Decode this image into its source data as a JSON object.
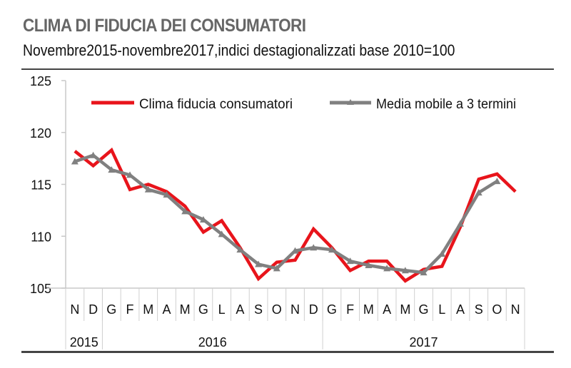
{
  "header": {
    "title": "CLIMA DI FIDUCIA DEI CONSUMATORI",
    "subtitle": "Novembre2015-novembre2017,indici destagionalizzati base 2010=100"
  },
  "chart_data": {
    "type": "line",
    "title": "CLIMA DI FIDUCIA DEI CONSUMATORI",
    "subtitle": "Novembre2015-novembre2017,indici destagionalizzati base 2010=100",
    "categories": [
      "N",
      "D",
      "G",
      "F",
      "M",
      "A",
      "M",
      "G",
      "L",
      "A",
      "S",
      "O",
      "N",
      "D",
      "G",
      "F",
      "M",
      "A",
      "M",
      "G",
      "L",
      "A",
      "S",
      "O",
      "N"
    ],
    "years": [
      {
        "label": "2015",
        "span": 2
      },
      {
        "label": "2016",
        "span": 12
      },
      {
        "label": "2017",
        "span": 11
      }
    ],
    "ylim": [
      105,
      125
    ],
    "yticks": [
      105,
      110,
      115,
      120,
      125
    ],
    "grid": false,
    "legend_position": "top",
    "series": [
      {
        "name": "Clima fiducia consumatori",
        "color": "#e8141b",
        "marker": "none",
        "values": [
          118.2,
          116.8,
          118.3,
          114.5,
          115.0,
          114.3,
          112.9,
          110.4,
          111.5,
          108.9,
          105.9,
          107.5,
          107.7,
          110.7,
          108.9,
          106.7,
          107.6,
          107.6,
          105.7,
          106.8,
          107.1,
          110.9,
          115.5,
          116.0,
          114.3
        ]
      },
      {
        "name": "Media mobile a 3 termini",
        "color": "#808080",
        "marker": "triangle",
        "values": [
          117.2,
          117.8,
          116.4,
          115.9,
          114.5,
          114.0,
          112.4,
          111.6,
          110.2,
          108.7,
          107.3,
          106.9,
          108.6,
          108.9,
          108.7,
          107.6,
          107.2,
          106.9,
          106.7,
          106.5,
          108.3,
          111.2,
          114.2,
          115.3,
          null
        ]
      }
    ]
  }
}
